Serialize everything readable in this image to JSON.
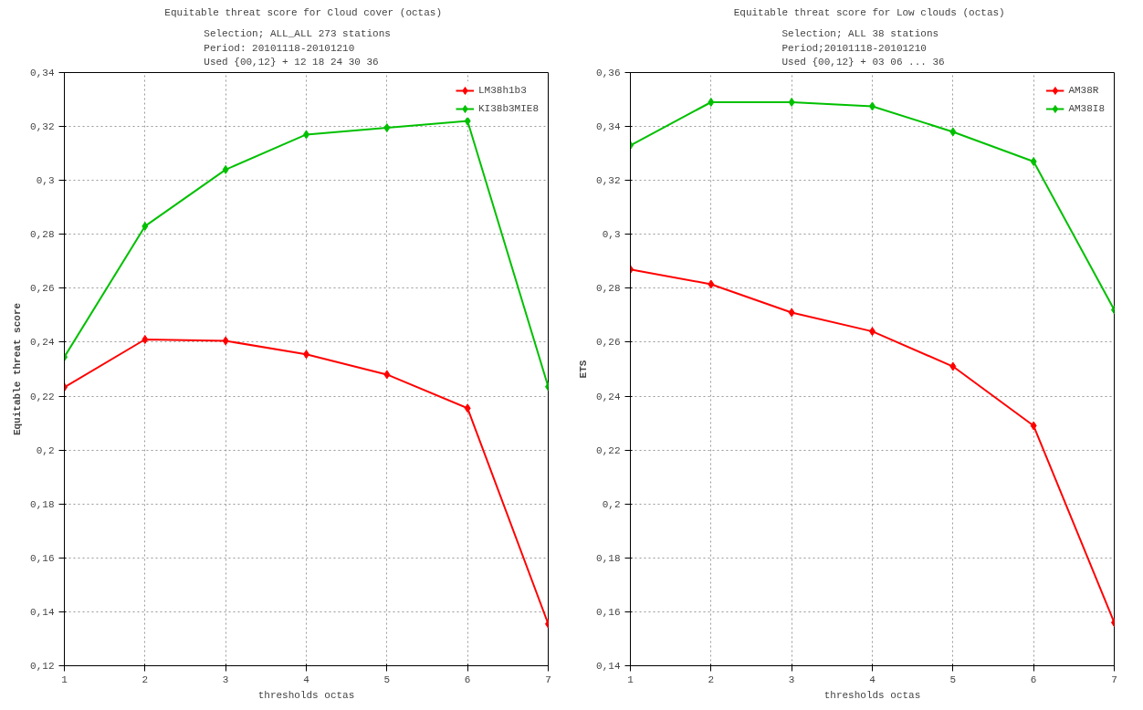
{
  "chart_data": [
    {
      "type": "line",
      "title": "Equitable threat score  for Cloud cover (octas)",
      "subtitle": "Selection; ALL_ALL    273 stations\nPeriod: 20101118-20101210\nUsed {00,12} + 12 18 24 30 36",
      "xlabel": "thresholds octas",
      "ylabel": "Equitable threat score",
      "x": [
        1,
        2,
        3,
        4,
        5,
        6,
        7
      ],
      "xlim": [
        1,
        7
      ],
      "xticks": [
        1,
        2,
        3,
        4,
        5,
        6,
        7
      ],
      "ylim": [
        0.12,
        0.34
      ],
      "yticks": [
        {
          "value": 0.12,
          "label": "0,12"
        },
        {
          "value": 0.14,
          "label": "0,14"
        },
        {
          "value": 0.16,
          "label": "0,16"
        },
        {
          "value": 0.18,
          "label": "0,18"
        },
        {
          "value": 0.2,
          "label": "0,2"
        },
        {
          "value": 0.22,
          "label": "0,22"
        },
        {
          "value": 0.24,
          "label": "0,24"
        },
        {
          "value": 0.26,
          "label": "0,26"
        },
        {
          "value": 0.28,
          "label": "0,28"
        },
        {
          "value": 0.3,
          "label": "0,3"
        },
        {
          "value": 0.32,
          "label": "0,32"
        },
        {
          "value": 0.34,
          "label": "0,34"
        }
      ],
      "grid": true,
      "legend": "top right",
      "marker": "diamond",
      "line_style": "solid",
      "series": [
        {
          "name": "LM38h1b3",
          "color": "#ff0000",
          "values": [
            0.2233,
            0.241,
            0.2405,
            0.2355,
            0.228,
            0.2155,
            0.1355
          ]
        },
        {
          "name": "KI38b3MIE8",
          "color": "#00c000",
          "values": [
            0.2345,
            0.283,
            0.304,
            0.317,
            0.3195,
            0.322,
            0.2235
          ]
        }
      ]
    },
    {
      "type": "line",
      "title": "Equitable threat score  for Low clouds (octas)",
      "subtitle": "Selection; ALL     38 stations\nPeriod;20101118-20101210\nUsed {00,12} + 03 06 ... 36",
      "xlabel": "thresholds octas",
      "ylabel": "ETS",
      "x": [
        1,
        2,
        3,
        4,
        5,
        6,
        7
      ],
      "xlim": [
        1,
        7
      ],
      "xticks": [
        1,
        2,
        3,
        4,
        5,
        6,
        7
      ],
      "ylim": [
        0.14,
        0.36
      ],
      "yticks": [
        {
          "value": 0.14,
          "label": "0,14"
        },
        {
          "value": 0.16,
          "label": "0,16"
        },
        {
          "value": 0.18,
          "label": "0,18"
        },
        {
          "value": 0.2,
          "label": "0,2"
        },
        {
          "value": 0.22,
          "label": "0,22"
        },
        {
          "value": 0.24,
          "label": "0,24"
        },
        {
          "value": 0.26,
          "label": "0,26"
        },
        {
          "value": 0.28,
          "label": "0,28"
        },
        {
          "value": 0.3,
          "label": "0,3"
        },
        {
          "value": 0.32,
          "label": "0,32"
        },
        {
          "value": 0.34,
          "label": "0,34"
        },
        {
          "value": 0.36,
          "label": "0,36"
        }
      ],
      "grid": true,
      "legend": "top right",
      "marker": "diamond",
      "line_style": "solid",
      "series": [
        {
          "name": "AM38R",
          "color": "#ff0000",
          "values": [
            0.287,
            0.2815,
            0.271,
            0.264,
            0.251,
            0.229,
            0.156
          ]
        },
        {
          "name": "AM38I8",
          "color": "#00c000",
          "values": [
            0.333,
            0.349,
            0.349,
            0.3475,
            0.338,
            0.327,
            0.272
          ]
        }
      ]
    }
  ]
}
